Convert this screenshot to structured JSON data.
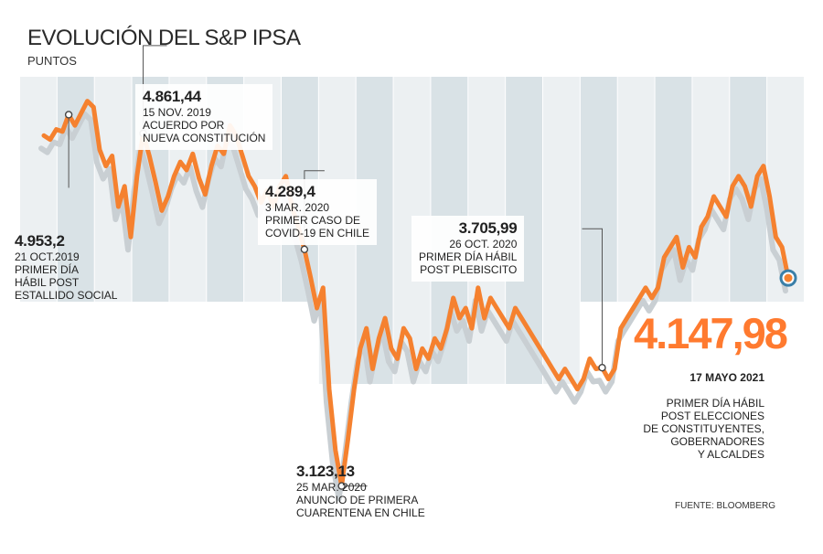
{
  "chart_data": {
    "type": "line",
    "title": "EVOLUCIÓN DEL S&P IPSA",
    "ylabel": "PUNTOS",
    "source": "FUENTE: BLOOMBERG",
    "ylim": [
      2950,
      5000
    ],
    "series": [
      {
        "values": [
          4850,
          4830,
          4880,
          4870,
          4953,
          4900,
          4960,
          5020,
          4990,
          4780,
          4700,
          4750,
          4500,
          4600,
          4350,
          4650,
          4861,
          4750,
          4620,
          4480,
          4550,
          4650,
          4720,
          4680,
          4760,
          4640,
          4560,
          4700,
          4800,
          4760,
          4900,
          4850,
          4750,
          4650,
          4600,
          4520,
          4580,
          4500,
          4600,
          4650,
          4500,
          4400,
          4289,
          4150,
          4000,
          4100,
          3600,
          3300,
          3123,
          3350,
          3600,
          3800,
          3900,
          3700,
          3850,
          3950,
          3800,
          3750,
          3900,
          3850,
          3700,
          3800,
          3750,
          3850,
          3800,
          3900,
          4050,
          3950,
          4000,
          3900,
          4100,
          3950,
          4050,
          4000,
          3950,
          3900,
          4000,
          3950,
          3900,
          3850,
          3800,
          3750,
          3700,
          3650,
          3700,
          3650,
          3600,
          3650,
          3750,
          3700,
          3705.99,
          3650,
          3700,
          3900,
          3950,
          4000,
          4050,
          4100,
          4050,
          4100,
          4250,
          4300,
          4350,
          4200,
          4300,
          4250,
          4400,
          4450,
          4550,
          4500,
          4450,
          4600,
          4650,
          4600,
          4500,
          4650,
          4700,
          4550,
          4350,
          4300,
          4147.98
        ]
      }
    ],
    "annotations": [
      {
        "value": "4.953,2",
        "date": "21 OCT.2019",
        "text": "PRIMER DÍA\nHÁBIL POST\nESTALLIDO SOCIAL"
      },
      {
        "value": "4.861,44",
        "date": "15  NOV. 2019",
        "text": "ACUERDO POR\nNUEVA CONSTITUCIÓN"
      },
      {
        "value": "4.289,4",
        "date": "3 MAR. 2020",
        "text": "PRIMER CASO DE\nCOVID-19 EN CHILE"
      },
      {
        "value": "3.123,13",
        "date": "25 MAR. 2020",
        "text": "ANUNCIO DE PRIMERA\nCUARENTENA EN CHILE"
      },
      {
        "value": "3.705,99",
        "date": "26 OCT. 2020",
        "text": "PRIMER DÍA HÁBIL\nPOST PLEBISCITO"
      },
      {
        "value": "4.147,98",
        "date": "17 MAYO 2021",
        "text": "PRIMER DÍA HÁBIL\nPOST ELECCIONES\nDE CONSTITUYENTES,\nGOBERNADORES\nY ALCALDES"
      }
    ],
    "marker_indices": [
      4,
      16,
      42,
      48,
      90,
      120
    ],
    "grid": true,
    "legend": "none",
    "colors": {
      "line": "#f5812f",
      "shadow": "#c9cfd3",
      "band_dark": "#d9e2e6",
      "band_light": "#ecf0f2",
      "marker_last": "#3a7fa8"
    }
  }
}
